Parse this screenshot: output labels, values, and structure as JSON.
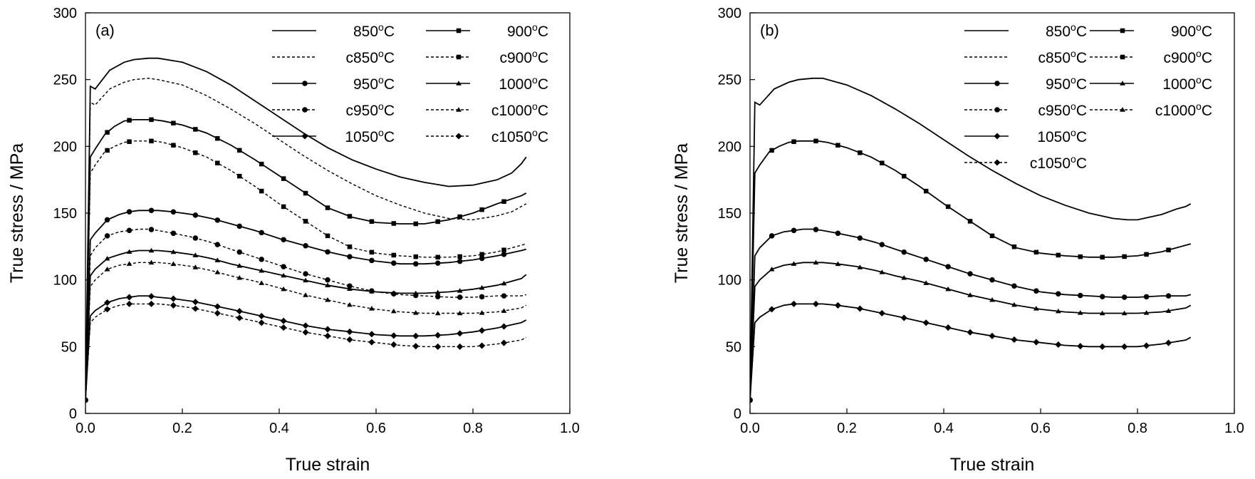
{
  "chart_data": [
    {
      "type": "line",
      "panel_label": "(a)",
      "xlabel": "True strain",
      "ylabel": "True stress / MPa",
      "xlim": [
        0,
        1.0
      ],
      "ylim": [
        0,
        300
      ],
      "xticks": [
        0,
        0.2,
        0.4,
        0.6,
        0.8,
        1.0
      ],
      "xtick_labels": [
        "0.0",
        "0.2",
        "0.4",
        "0.6",
        "0.8",
        "1.0"
      ],
      "yticks": [
        0,
        50,
        100,
        150,
        200,
        250,
        300
      ],
      "ytick_labels": [
        "0",
        "50",
        "100",
        "150",
        "200",
        "250",
        "300"
      ],
      "legend_position": "top-right",
      "series": [
        {
          "name": "850°C",
          "style": "solid",
          "marker": "none",
          "x": [
            0,
            0.01,
            0.02,
            0.05,
            0.08,
            0.1,
            0.13,
            0.15,
            0.2,
            0.25,
            0.3,
            0.35,
            0.4,
            0.45,
            0.5,
            0.55,
            0.6,
            0.65,
            0.7,
            0.75,
            0.8,
            0.85,
            0.88,
            0.9,
            0.91
          ],
          "y": [
            10,
            245,
            243,
            257,
            263,
            265,
            266,
            266,
            263,
            256,
            246,
            234,
            222,
            210,
            199,
            190,
            183,
            177,
            173,
            170,
            171,
            175,
            180,
            187,
            192
          ]
        },
        {
          "name": "c850°C",
          "style": "dashed",
          "marker": "none",
          "x": [
            0,
            0.01,
            0.02,
            0.05,
            0.08,
            0.1,
            0.13,
            0.15,
            0.2,
            0.25,
            0.3,
            0.35,
            0.4,
            0.45,
            0.5,
            0.55,
            0.6,
            0.65,
            0.7,
            0.75,
            0.8,
            0.85,
            0.88,
            0.9,
            0.91
          ],
          "y": [
            10,
            233,
            231,
            243,
            248,
            250,
            251,
            250,
            246,
            238,
            228,
            217,
            205,
            193,
            182,
            172,
            163,
            156,
            150,
            146,
            145,
            148,
            151,
            155,
            157
          ]
        },
        {
          "name": "900°C",
          "style": "solid",
          "marker": "square",
          "x": [
            0,
            0.01,
            0.02,
            0.04,
            0.06,
            0.08,
            0.1,
            0.12,
            0.14,
            0.16,
            0.2,
            0.25,
            0.3,
            0.35,
            0.4,
            0.45,
            0.5,
            0.55,
            0.6,
            0.65,
            0.7,
            0.75,
            0.8,
            0.85,
            0.9,
            0.91
          ],
          "y": [
            10,
            192,
            198,
            209,
            215,
            219,
            220,
            220,
            220,
            219,
            216,
            210,
            201,
            190,
            178,
            166,
            154,
            147,
            143,
            142,
            142,
            145,
            150,
            157,
            163,
            165
          ]
        },
        {
          "name": "c900°C",
          "style": "dashed",
          "marker": "square",
          "x": [
            0,
            0.01,
            0.02,
            0.04,
            0.06,
            0.08,
            0.1,
            0.12,
            0.14,
            0.16,
            0.2,
            0.25,
            0.3,
            0.35,
            0.4,
            0.45,
            0.5,
            0.55,
            0.6,
            0.65,
            0.7,
            0.75,
            0.8,
            0.85,
            0.9,
            0.91
          ],
          "y": [
            10,
            180,
            186,
            196,
            200,
            203,
            204,
            204,
            204,
            203,
            199,
            192,
            182,
            170,
            157,
            145,
            133,
            124,
            120,
            118,
            117,
            117,
            118,
            121,
            126,
            127
          ]
        },
        {
          "name": "950°C",
          "style": "solid",
          "marker": "circle",
          "x": [
            0,
            0.01,
            0.02,
            0.045,
            0.07,
            0.09,
            0.11,
            0.13,
            0.15,
            0.18,
            0.22,
            0.26,
            0.3,
            0.35,
            0.4,
            0.45,
            0.5,
            0.55,
            0.6,
            0.65,
            0.7,
            0.75,
            0.8,
            0.85,
            0.9,
            0.91
          ],
          "y": [
            10,
            130,
            135,
            145,
            149,
            151,
            152,
            152,
            152,
            151,
            149,
            146,
            142,
            137,
            131,
            126,
            121,
            117,
            114,
            112,
            112,
            113,
            115,
            118,
            122,
            123
          ]
        },
        {
          "name": "c950°C",
          "style": "dashed",
          "marker": "circle",
          "x": [
            0,
            0.01,
            0.02,
            0.045,
            0.07,
            0.09,
            0.11,
            0.13,
            0.15,
            0.18,
            0.22,
            0.26,
            0.3,
            0.35,
            0.4,
            0.45,
            0.5,
            0.55,
            0.6,
            0.65,
            0.7,
            0.75,
            0.8,
            0.85,
            0.9,
            0.91
          ],
          "y": [
            10,
            118,
            124,
            133,
            136,
            137,
            138,
            138,
            137,
            135,
            132,
            128,
            123,
            117,
            111,
            105,
            100,
            95,
            91,
            89,
            88,
            87,
            87,
            88,
            88,
            89
          ]
        },
        {
          "name": "1000°C",
          "style": "solid",
          "marker": "triangle",
          "x": [
            0,
            0.01,
            0.02,
            0.045,
            0.07,
            0.09,
            0.11,
            0.13,
            0.15,
            0.18,
            0.22,
            0.26,
            0.3,
            0.35,
            0.4,
            0.45,
            0.5,
            0.55,
            0.6,
            0.65,
            0.7,
            0.75,
            0.8,
            0.85,
            0.9,
            0.91
          ],
          "y": [
            10,
            103,
            108,
            116,
            119,
            121,
            122,
            122,
            122,
            121,
            119,
            116,
            112,
            108,
            104,
            100,
            96,
            93,
            91,
            90,
            90,
            91,
            93,
            96,
            101,
            104
          ]
        },
        {
          "name": "c1000°C",
          "style": "dashed",
          "marker": "triangle",
          "x": [
            0,
            0.01,
            0.02,
            0.045,
            0.07,
            0.09,
            0.11,
            0.13,
            0.15,
            0.18,
            0.22,
            0.26,
            0.3,
            0.35,
            0.4,
            0.45,
            0.5,
            0.55,
            0.6,
            0.65,
            0.7,
            0.75,
            0.8,
            0.85,
            0.9,
            0.91
          ],
          "y": [
            10,
            95,
            100,
            108,
            111,
            112,
            113,
            113,
            113,
            112,
            110,
            107,
            103,
            99,
            94,
            89,
            85,
            81,
            78,
            76,
            75,
            75,
            75,
            76,
            79,
            81
          ]
        },
        {
          "name": "1050°C",
          "style": "solid",
          "marker": "diamond",
          "x": [
            0,
            0.01,
            0.02,
            0.045,
            0.07,
            0.09,
            0.11,
            0.13,
            0.15,
            0.18,
            0.22,
            0.26,
            0.3,
            0.35,
            0.4,
            0.45,
            0.5,
            0.55,
            0.6,
            0.65,
            0.7,
            0.75,
            0.8,
            0.85,
            0.9,
            0.91
          ],
          "y": [
            10,
            73,
            77,
            83,
            86,
            87,
            88,
            88,
            87,
            86,
            84,
            81,
            78,
            74,
            70,
            66,
            63,
            61,
            59,
            58,
            58,
            59,
            61,
            64,
            68,
            70
          ]
        },
        {
          "name": "c1050°C",
          "style": "dashed",
          "marker": "diamond",
          "x": [
            0,
            0.01,
            0.02,
            0.045,
            0.07,
            0.09,
            0.11,
            0.13,
            0.15,
            0.18,
            0.22,
            0.26,
            0.3,
            0.35,
            0.4,
            0.45,
            0.5,
            0.55,
            0.6,
            0.65,
            0.7,
            0.75,
            0.8,
            0.85,
            0.9,
            0.91
          ],
          "y": [
            10,
            68,
            72,
            78,
            81,
            82,
            82,
            82,
            82,
            81,
            79,
            76,
            73,
            69,
            65,
            61,
            58,
            55,
            53,
            51,
            50,
            50,
            50,
            52,
            55,
            57
          ]
        }
      ],
      "legend_order": [
        0,
        2,
        1,
        3,
        4,
        6,
        5,
        7,
        8,
        9
      ]
    },
    {
      "type": "line",
      "panel_label": "(b)",
      "xlabel": "True strain",
      "ylabel": "True stress / MPa",
      "xlim": [
        0,
        1.0
      ],
      "ylim": [
        0,
        300
      ],
      "xticks": [
        0,
        0.2,
        0.4,
        0.6,
        0.8,
        1.0
      ],
      "xtick_labels": [
        "0.0",
        "0.2",
        "0.4",
        "0.6",
        "0.8",
        "1.0"
      ],
      "yticks": [
        0,
        50,
        100,
        150,
        200,
        250,
        300
      ],
      "ytick_labels": [
        "0",
        "50",
        "100",
        "150",
        "200",
        "250",
        "300"
      ],
      "legend_position": "top-right",
      "series": [
        {
          "name": "850°C",
          "style": "solid",
          "marker": "none",
          "x": [],
          "y": []
        },
        {
          "name": "c850°C",
          "style": "solid",
          "marker": "none",
          "x": [
            0,
            0.01,
            0.02,
            0.05,
            0.08,
            0.1,
            0.13,
            0.15,
            0.2,
            0.25,
            0.3,
            0.35,
            0.4,
            0.45,
            0.5,
            0.55,
            0.6,
            0.65,
            0.7,
            0.75,
            0.78,
            0.8,
            0.85,
            0.88,
            0.9,
            0.91
          ],
          "y": [
            10,
            233,
            231,
            243,
            248,
            250,
            251,
            251,
            246,
            238,
            228,
            217,
            205,
            193,
            182,
            172,
            163,
            156,
            150,
            146,
            145,
            145,
            149,
            153,
            155,
            157
          ]
        },
        {
          "name": "900°C",
          "style": "solid",
          "marker": "square",
          "x": [],
          "y": []
        },
        {
          "name": "c900°C",
          "style": "solid",
          "marker": "square",
          "x": [
            0,
            0.01,
            0.02,
            0.04,
            0.06,
            0.08,
            0.1,
            0.12,
            0.14,
            0.16,
            0.2,
            0.25,
            0.3,
            0.35,
            0.4,
            0.45,
            0.5,
            0.55,
            0.6,
            0.65,
            0.7,
            0.75,
            0.8,
            0.85,
            0.9,
            0.91
          ],
          "y": [
            10,
            180,
            186,
            196,
            200,
            203,
            204,
            204,
            204,
            203,
            199,
            192,
            182,
            170,
            157,
            145,
            133,
            124,
            120,
            118,
            117,
            117,
            118,
            121,
            126,
            127
          ]
        },
        {
          "name": "950°C",
          "style": "solid",
          "marker": "circle",
          "x": [],
          "y": []
        },
        {
          "name": "c950°C",
          "style": "solid",
          "marker": "circle",
          "x": [
            0,
            0.01,
            0.02,
            0.045,
            0.07,
            0.09,
            0.11,
            0.13,
            0.15,
            0.18,
            0.22,
            0.26,
            0.3,
            0.35,
            0.4,
            0.45,
            0.5,
            0.55,
            0.6,
            0.65,
            0.7,
            0.75,
            0.8,
            0.85,
            0.9,
            0.91
          ],
          "y": [
            10,
            118,
            124,
            133,
            136,
            137,
            138,
            138,
            137,
            135,
            132,
            128,
            123,
            117,
            111,
            105,
            100,
            95,
            91,
            89,
            88,
            87,
            87,
            88,
            88,
            89
          ]
        },
        {
          "name": "1000°C",
          "style": "solid",
          "marker": "triangle",
          "x": [],
          "y": []
        },
        {
          "name": "c1000°C",
          "style": "solid",
          "marker": "triangle",
          "x": [
            0,
            0.01,
            0.02,
            0.045,
            0.07,
            0.09,
            0.11,
            0.13,
            0.15,
            0.18,
            0.22,
            0.26,
            0.3,
            0.35,
            0.4,
            0.45,
            0.5,
            0.55,
            0.6,
            0.65,
            0.7,
            0.75,
            0.8,
            0.85,
            0.9,
            0.91
          ],
          "y": [
            10,
            95,
            100,
            108,
            111,
            112,
            113,
            113,
            113,
            112,
            110,
            107,
            103,
            99,
            94,
            89,
            85,
            81,
            78,
            76,
            75,
            75,
            75,
            76,
            79,
            81
          ]
        },
        {
          "name": "1050°C",
          "style": "solid",
          "marker": "diamond",
          "x": [],
          "y": []
        },
        {
          "name": "c1050°C",
          "style": "solid",
          "marker": "diamond",
          "x": [
            0,
            0.01,
            0.02,
            0.045,
            0.07,
            0.09,
            0.11,
            0.13,
            0.15,
            0.18,
            0.22,
            0.26,
            0.3,
            0.35,
            0.4,
            0.45,
            0.5,
            0.55,
            0.6,
            0.65,
            0.7,
            0.75,
            0.8,
            0.85,
            0.9,
            0.91
          ],
          "y": [
            10,
            68,
            72,
            78,
            81,
            82,
            82,
            82,
            82,
            81,
            79,
            76,
            73,
            69,
            65,
            61,
            58,
            55,
            53,
            51,
            50,
            50,
            50,
            52,
            55,
            57
          ]
        }
      ],
      "legend_entries": [
        {
          "name": "850°C",
          "style": "solid",
          "marker": "none"
        },
        {
          "name": "900°C",
          "style": "solid",
          "marker": "square"
        },
        {
          "name": "c850°C",
          "style": "dashed",
          "marker": "none"
        },
        {
          "name": "c900°C",
          "style": "dashed",
          "marker": "square"
        },
        {
          "name": "950°C",
          "style": "solid",
          "marker": "circle"
        },
        {
          "name": "1000°C",
          "style": "solid",
          "marker": "triangle"
        },
        {
          "name": "c950°C",
          "style": "dashed",
          "marker": "circle"
        },
        {
          "name": "c1000°C",
          "style": "dashed",
          "marker": "triangle"
        },
        {
          "name": "1050°C",
          "style": "solid",
          "marker": "diamond"
        },
        {
          "name": "c1050°C",
          "style": "dashed",
          "marker": "diamond"
        }
      ]
    }
  ]
}
